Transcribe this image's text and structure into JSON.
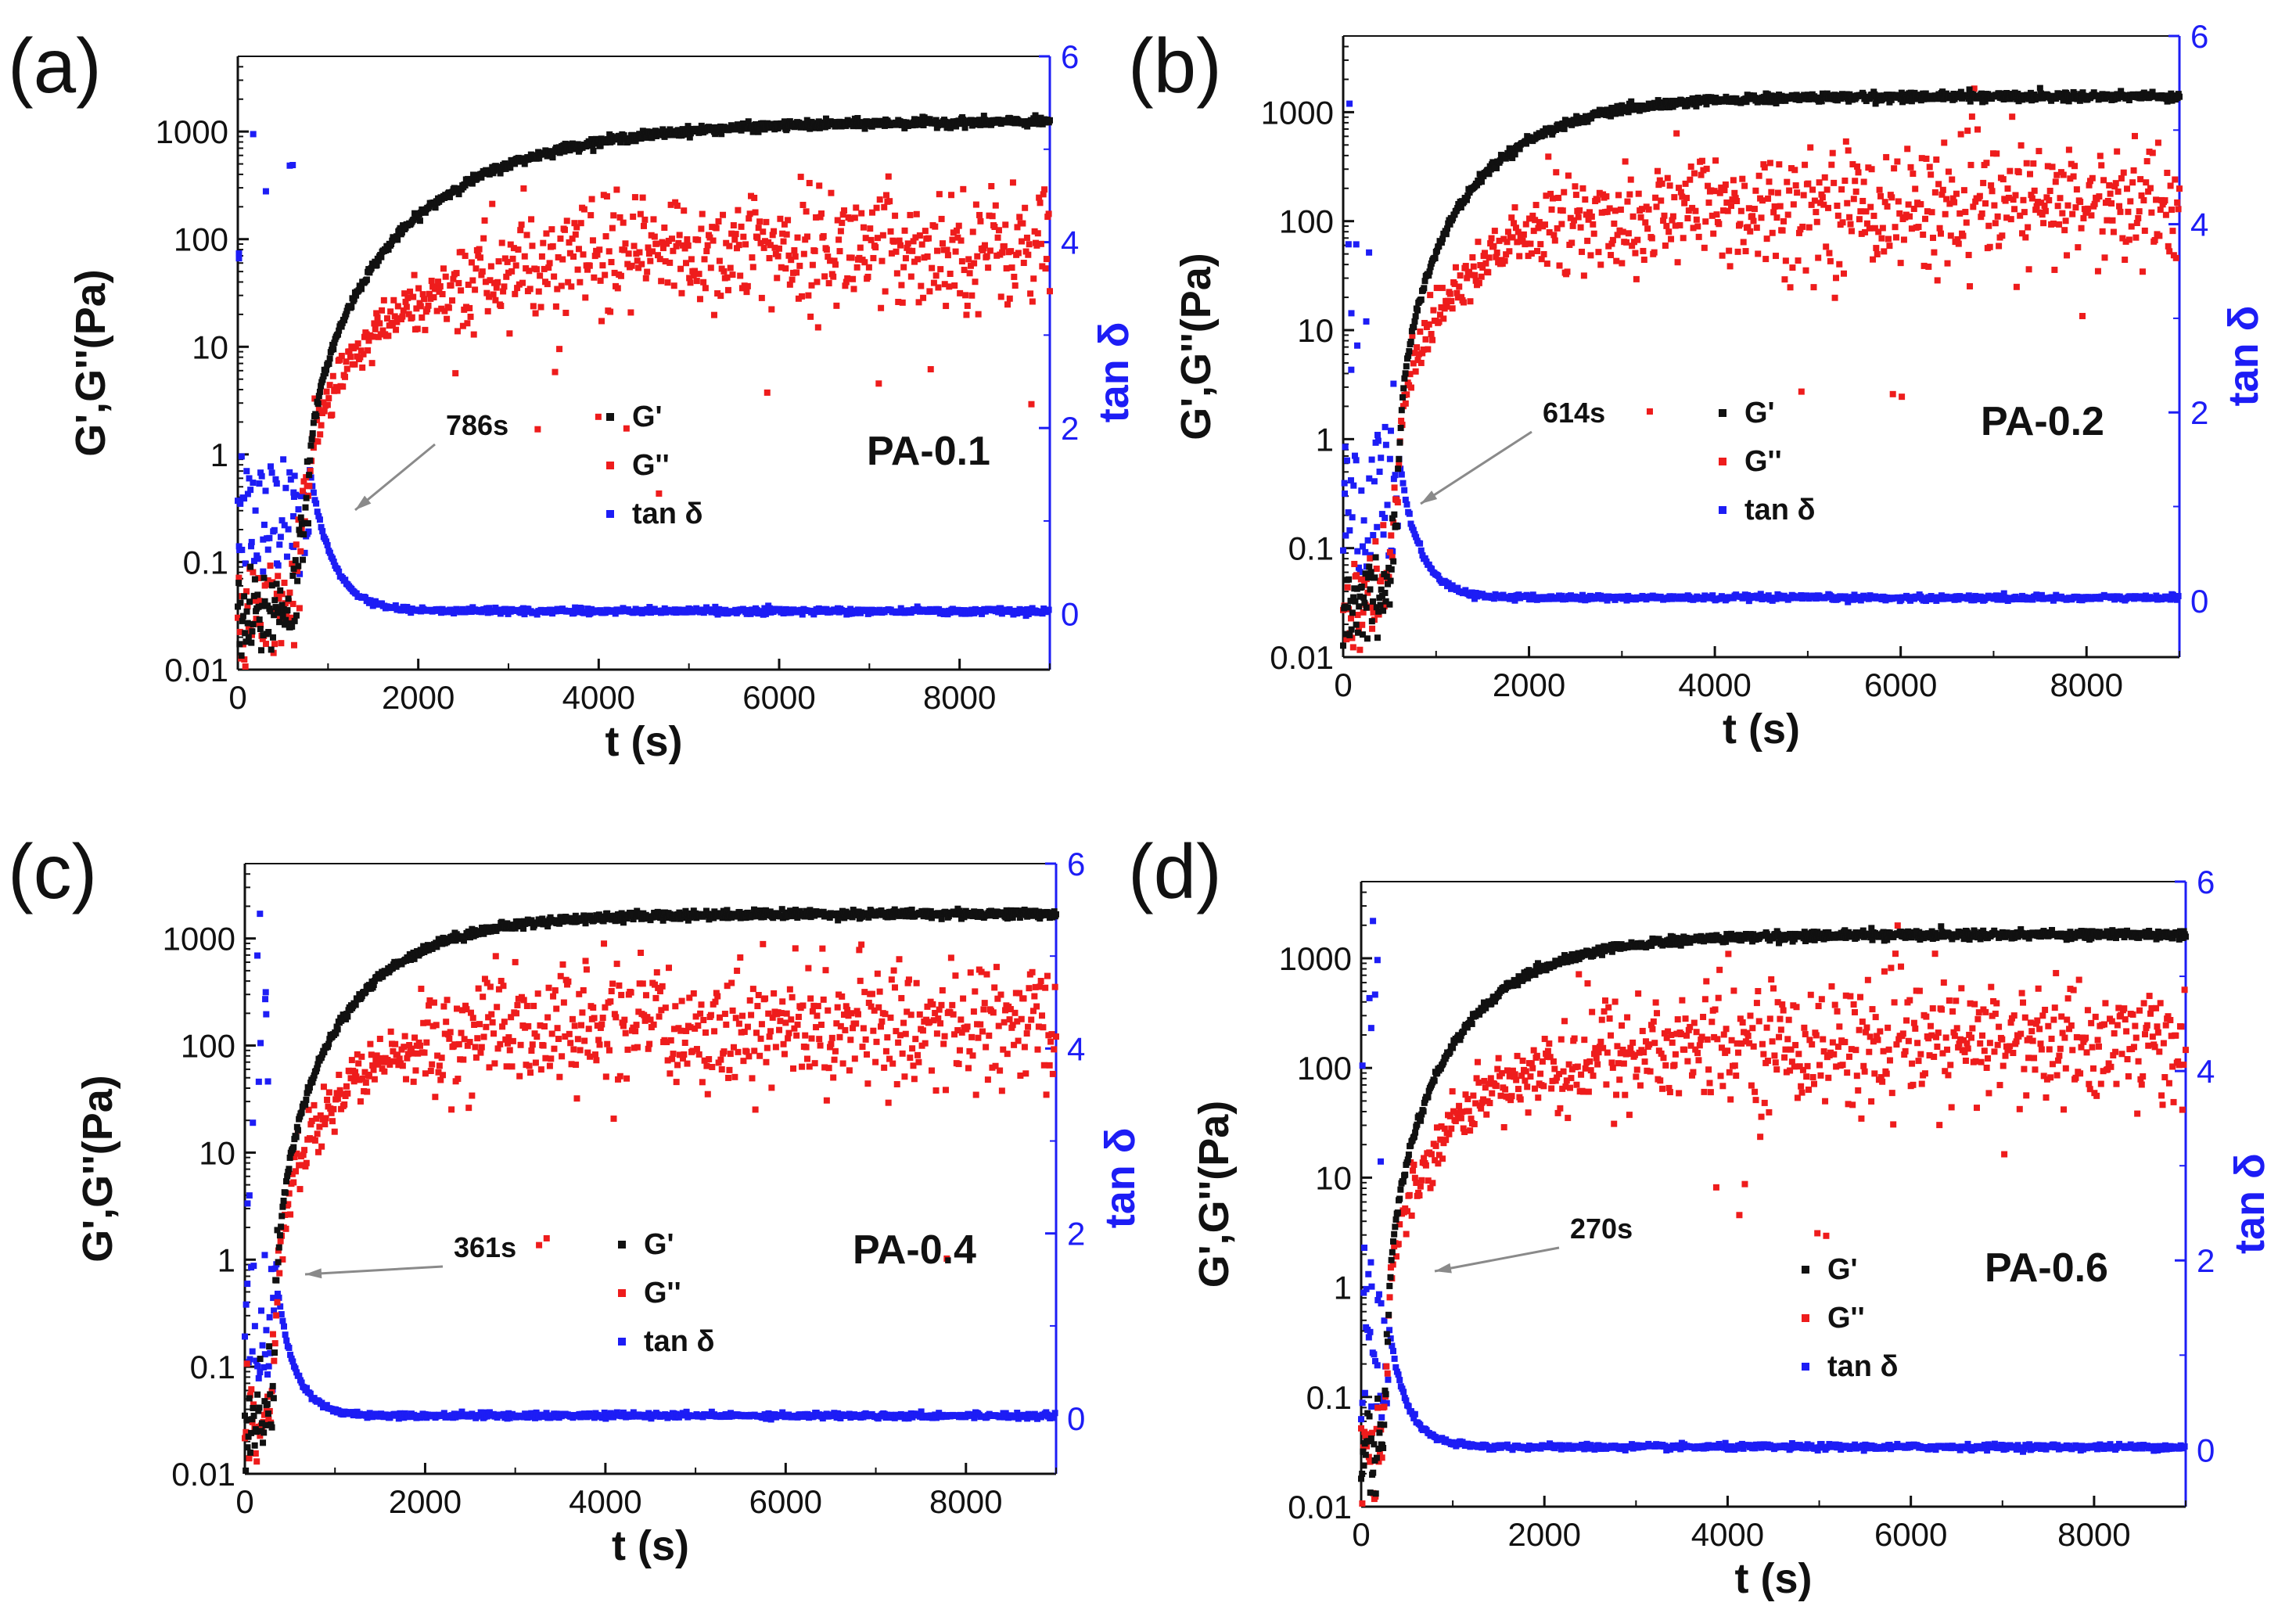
{
  "figure": {
    "description_colors": {
      "gprime": "#111111",
      "gdoubleprime": "#ee1c1c",
      "tandelta": "#1d1df5"
    }
  },
  "chart_data": [
    {
      "type": "scatter",
      "panel_label": "(a)",
      "sample": "PA-0.1",
      "gel_point_label": "786s",
      "gel_point_s": 786,
      "xlabel": "t (s)",
      "ylabel": "G',G''(Pa)",
      "y2label": "tan δ",
      "xlim": [
        0,
        9000
      ],
      "ylim": [
        0.01,
        5000
      ],
      "y2lim": [
        -0.6,
        6
      ],
      "xticks": [
        "0",
        "2000",
        "4000",
        "6000",
        "8000"
      ],
      "yticks": [
        "0.01",
        "0.1",
        "1",
        "10",
        "100",
        "1000"
      ],
      "y2ticks": [
        "0",
        "2",
        "4",
        "6"
      ],
      "legend": [
        "G'",
        "G''",
        "tan δ"
      ],
      "series": [
        {
          "name": "G'",
          "color": "#111111",
          "plateau": 1250,
          "tau": 1400,
          "onset": 786,
          "gel_value": 0.5,
          "x": [
            0,
            1000,
            2000,
            3000,
            4000,
            6000,
            9000
          ],
          "values": [
            0.04,
            3,
            200,
            700,
            1000,
            1200,
            1250
          ]
        },
        {
          "name": "G''",
          "color": "#ee1c1c",
          "plateau": 85,
          "tau": 1300,
          "onset": 786,
          "gel_value": 0.5,
          "x": [
            0,
            1000,
            2000,
            3000,
            4000,
            6000,
            9000
          ],
          "values": [
            0.03,
            2,
            25,
            45,
            60,
            80,
            90
          ]
        },
        {
          "name": "tan δ",
          "color": "#1d1df5",
          "baseline": 0.03,
          "peak": 1.6,
          "peak_t": 790,
          "decay": 250,
          "x": [
            0,
            786,
            1200,
            2000,
            4000,
            9000
          ],
          "values": [
            0.8,
            1.6,
            0.3,
            0.06,
            0.03,
            0.03
          ]
        }
      ]
    },
    {
      "type": "scatter",
      "panel_label": "(b)",
      "sample": "PA-0.2",
      "gel_point_label": "614s",
      "gel_point_s": 614,
      "xlabel": "t (s)",
      "ylabel": "G',G''(Pa)",
      "y2label": "tan δ",
      "xlim": [
        0,
        9000
      ],
      "ylim": [
        0.01,
        5000
      ],
      "y2lim": [
        -0.6,
        6
      ],
      "xticks": [
        "0",
        "2000",
        "4000",
        "6000",
        "8000"
      ],
      "yticks": [
        "0.01",
        "0.1",
        "1",
        "10",
        "100",
        "1000"
      ],
      "y2ticks": [
        "0",
        "2",
        "4",
        "6"
      ],
      "legend": [
        "G'",
        "G''",
        "tan δ"
      ],
      "series": [
        {
          "name": "G'",
          "color": "#111111",
          "plateau": 1400,
          "tau": 900,
          "onset": 614,
          "gel_value": 0.8,
          "x": [
            0,
            1000,
            2000,
            3000,
            4000,
            6000,
            9000
          ],
          "values": [
            0.04,
            80,
            900,
            1300,
            1380,
            1400,
            1400
          ]
        },
        {
          "name": "G''",
          "color": "#ee1c1c",
          "plateau": 140,
          "tau": 900,
          "onset": 614,
          "gel_value": 0.8,
          "x": [
            0,
            1000,
            2000,
            3000,
            4000,
            6000,
            9000
          ],
          "values": [
            0.03,
            15,
            90,
            120,
            130,
            140,
            140
          ]
        },
        {
          "name": "tan δ",
          "color": "#1d1df5",
          "baseline": 0.03,
          "peak": 1.5,
          "peak_t": 600,
          "decay": 220,
          "x": [
            0,
            614,
            1000,
            2000,
            4000,
            9000
          ],
          "values": [
            0.7,
            1.5,
            0.25,
            0.05,
            0.03,
            0.03
          ]
        }
      ]
    },
    {
      "type": "scatter",
      "panel_label": "(c)",
      "sample": "PA-0.4",
      "gel_point_label": "361s",
      "gel_point_s": 361,
      "xlabel": "t (s)",
      "ylabel": "G',G''(Pa)",
      "y2label": "tan δ",
      "xlim": [
        0,
        9000
      ],
      "ylim": [
        0.01,
        5000
      ],
      "y2lim": [
        -0.6,
        6
      ],
      "xticks": [
        "0",
        "2000",
        "4000",
        "6000",
        "8000"
      ],
      "yticks": [
        "0.01",
        "0.1",
        "1",
        "10",
        "100",
        "1000"
      ],
      "y2ticks": [
        "0",
        "2",
        "4",
        "6"
      ],
      "legend": [
        "G'",
        "G''",
        "tan δ"
      ],
      "series": [
        {
          "name": "G'",
          "color": "#111111",
          "plateau": 1700,
          "tau": 900,
          "onset": 361,
          "gel_value": 0.5,
          "x": [
            0,
            1000,
            2000,
            3000,
            4000,
            6000,
            9000
          ],
          "values": [
            0.03,
            60,
            800,
            1500,
            1650,
            1700,
            1700
          ]
        },
        {
          "name": "G''",
          "color": "#ee1c1c",
          "plateau": 150,
          "tau": 800,
          "onset": 361,
          "gel_value": 0.5,
          "x": [
            0,
            1000,
            2000,
            3000,
            4000,
            6000,
            9000
          ],
          "values": [
            0.03,
            20,
            110,
            140,
            150,
            150,
            150
          ]
        },
        {
          "name": "tan δ",
          "color": "#1d1df5",
          "baseline": 0.03,
          "peak": 1.4,
          "peak_t": 360,
          "decay": 200,
          "x": [
            0,
            361,
            800,
            2000,
            4000,
            9000
          ],
          "values": [
            0.8,
            1.4,
            0.2,
            0.04,
            0.03,
            0.03
          ]
        }
      ]
    },
    {
      "type": "scatter",
      "panel_label": "(d)",
      "sample": "PA-0.6",
      "gel_point_label": "270s",
      "gel_point_s": 270,
      "xlabel": "t (s)",
      "ylabel": "G',G''(Pa)",
      "y2label": "tan δ",
      "xlim": [
        0,
        9000
      ],
      "ylim": [
        0.01,
        5000
      ],
      "y2lim": [
        -0.6,
        6
      ],
      "xticks": [
        "0",
        "2000",
        "4000",
        "6000",
        "8000"
      ],
      "yticks": [
        "0.01",
        "0.1",
        "1",
        "10",
        "100",
        "1000"
      ],
      "y2ticks": [
        "0",
        "2",
        "4",
        "6"
      ],
      "legend": [
        "G'",
        "G''",
        "tan δ"
      ],
      "series": [
        {
          "name": "G'",
          "color": "#111111",
          "plateau": 1650,
          "tau": 900,
          "onset": 300,
          "gel_value": 0.5,
          "x": [
            0,
            1000,
            2000,
            3000,
            4000,
            6000,
            9000
          ],
          "values": [
            0.03,
            60,
            800,
            1400,
            1600,
            1650,
            1650
          ]
        },
        {
          "name": "G''",
          "color": "#ee1c1c",
          "plateau": 170,
          "tau": 900,
          "onset": 300,
          "gel_value": 0.5,
          "x": [
            0,
            1000,
            2000,
            3000,
            4000,
            6000,
            9000
          ],
          "values": [
            0.03,
            20,
            100,
            150,
            160,
            170,
            170
          ]
        },
        {
          "name": "tan δ",
          "color": "#1d1df5",
          "baseline": 0.03,
          "peak": 1.3,
          "peak_t": 300,
          "decay": 200,
          "x": [
            0,
            270,
            800,
            2000,
            4000,
            9000
          ],
          "values": [
            0.9,
            1.3,
            0.2,
            0.04,
            0.03,
            0.03
          ]
        }
      ]
    }
  ]
}
